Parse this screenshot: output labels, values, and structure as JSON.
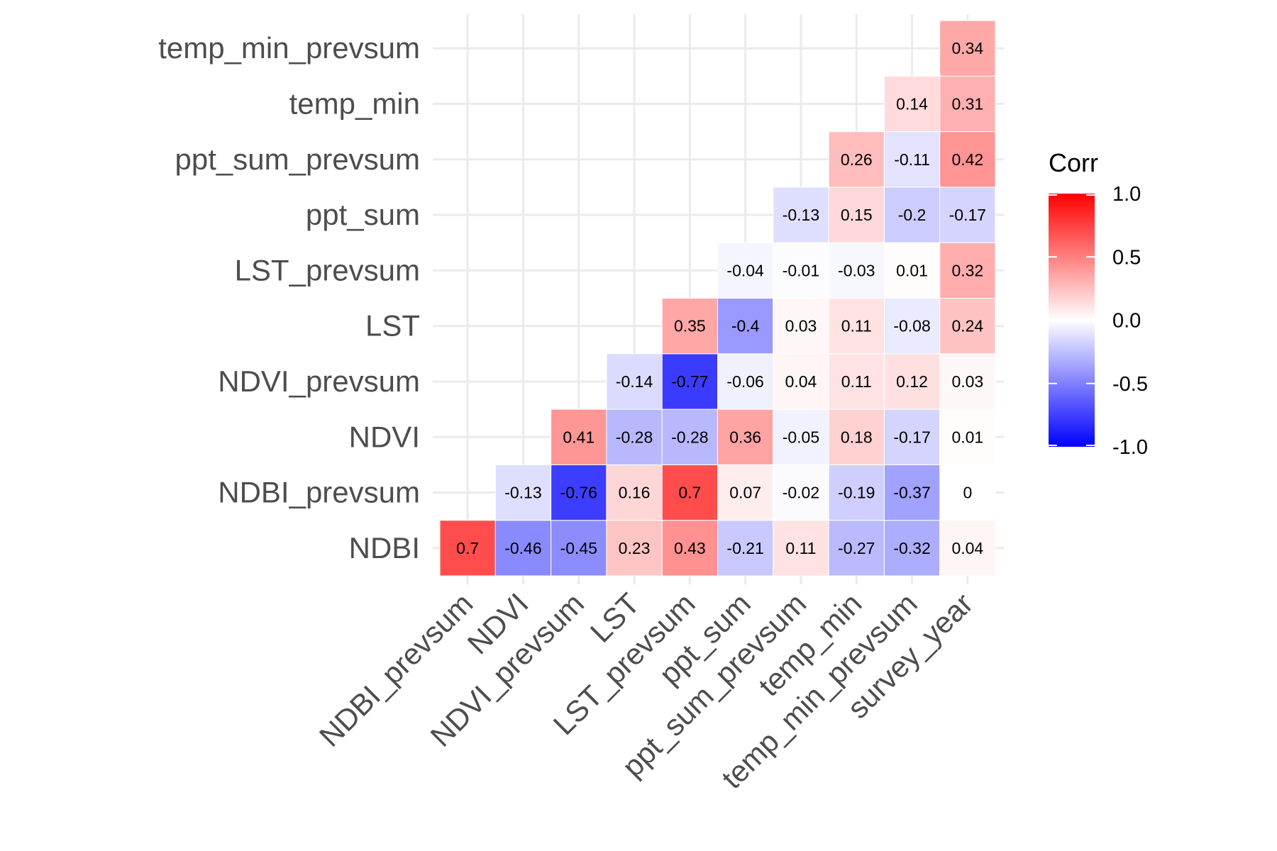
{
  "chart_data": {
    "type": "heatmap",
    "title": "",
    "xlabel": "",
    "ylabel": "",
    "x_categories": [
      "NDBI_prevsum",
      "NDVI",
      "NDVI_prevsum",
      "LST",
      "LST_prevsum",
      "ppt_sum",
      "ppt_sum_prevsum",
      "temp_min",
      "temp_min_prevsum",
      "survey_year"
    ],
    "y_categories": [
      "NDBI",
      "NDBI_prevsum",
      "NDVI",
      "NDVI_prevsum",
      "LST",
      "LST_prevsum",
      "ppt_sum",
      "ppt_sum_prevsum",
      "temp_min",
      "temp_min_prevsum"
    ],
    "values": [
      [
        0.7,
        -0.46,
        -0.45,
        0.23,
        0.43,
        -0.21,
        0.11,
        -0.27,
        -0.32,
        0.04
      ],
      [
        null,
        -0.13,
        -0.76,
        0.16,
        0.7,
        0.07,
        -0.02,
        -0.19,
        -0.37,
        0
      ],
      [
        null,
        null,
        0.41,
        -0.28,
        -0.28,
        0.36,
        -0.05,
        0.18,
        -0.17,
        0.01
      ],
      [
        null,
        null,
        null,
        -0.14,
        -0.77,
        -0.06,
        0.04,
        0.11,
        0.12,
        0.03
      ],
      [
        null,
        null,
        null,
        null,
        0.35,
        -0.4,
        0.03,
        0.11,
        -0.08,
        0.24
      ],
      [
        null,
        null,
        null,
        null,
        null,
        -0.04,
        -0.01,
        -0.03,
        0.01,
        0.32
      ],
      [
        null,
        null,
        null,
        null,
        null,
        null,
        -0.13,
        0.15,
        -0.2,
        -0.17
      ],
      [
        null,
        null,
        null,
        null,
        null,
        null,
        null,
        0.26,
        -0.11,
        0.42
      ],
      [
        null,
        null,
        null,
        null,
        null,
        null,
        null,
        null,
        0.14,
        0.31
      ],
      [
        null,
        null,
        null,
        null,
        null,
        null,
        null,
        null,
        null,
        0.34
      ]
    ],
    "legend": {
      "title": "Corr",
      "ticks": [
        "1.0",
        "0.5",
        "0.0",
        "-0.5",
        "-1.0"
      ],
      "range": [
        -1,
        1
      ],
      "low_color": "#0000ff",
      "mid_color": "#ffffff",
      "high_color": "#ff0000",
      "placement": "right"
    },
    "grid": true
  }
}
